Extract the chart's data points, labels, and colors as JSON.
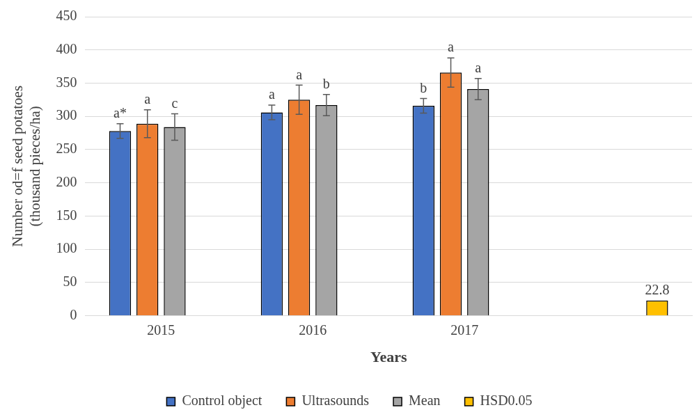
{
  "chart_data": {
    "type": "bar",
    "xlabel": "Years",
    "ylabel": "Number od=f seed potatoes (thousand pieces/ha)",
    "categories": [
      "2015",
      "2016",
      "2017",
      null
    ],
    "series": [
      {
        "name": "Control object",
        "color": "#4472c4",
        "values": [
          278,
          306,
          316,
          null
        ],
        "errors": [
          11,
          11,
          11,
          null
        ],
        "value_labels": [
          "a*",
          "a",
          "b",
          null
        ]
      },
      {
        "name": "Ultrasounds",
        "color": "#ed7d31",
        "values": [
          289,
          325,
          366,
          null
        ],
        "errors": [
          21,
          22,
          22,
          null
        ],
        "value_labels": [
          "a",
          "a",
          "a",
          null
        ]
      },
      {
        "name": "Mean",
        "color": "#a5a5a5",
        "values": [
          284,
          317,
          341,
          null
        ],
        "errors": [
          20,
          16,
          16,
          null
        ],
        "value_labels": [
          "c",
          "b",
          "a",
          null
        ]
      },
      {
        "name": "HSD0.05",
        "color": "#ffc000",
        "values": [
          null,
          null,
          null,
          22.8
        ],
        "value_labels": [
          null,
          null,
          null,
          "22.8"
        ]
      }
    ],
    "ylim": [
      0,
      450
    ],
    "yticks": [
      0,
      50,
      100,
      150,
      200,
      250,
      300,
      350,
      400,
      450
    ],
    "grid": "y",
    "legend": "bottom"
  }
}
